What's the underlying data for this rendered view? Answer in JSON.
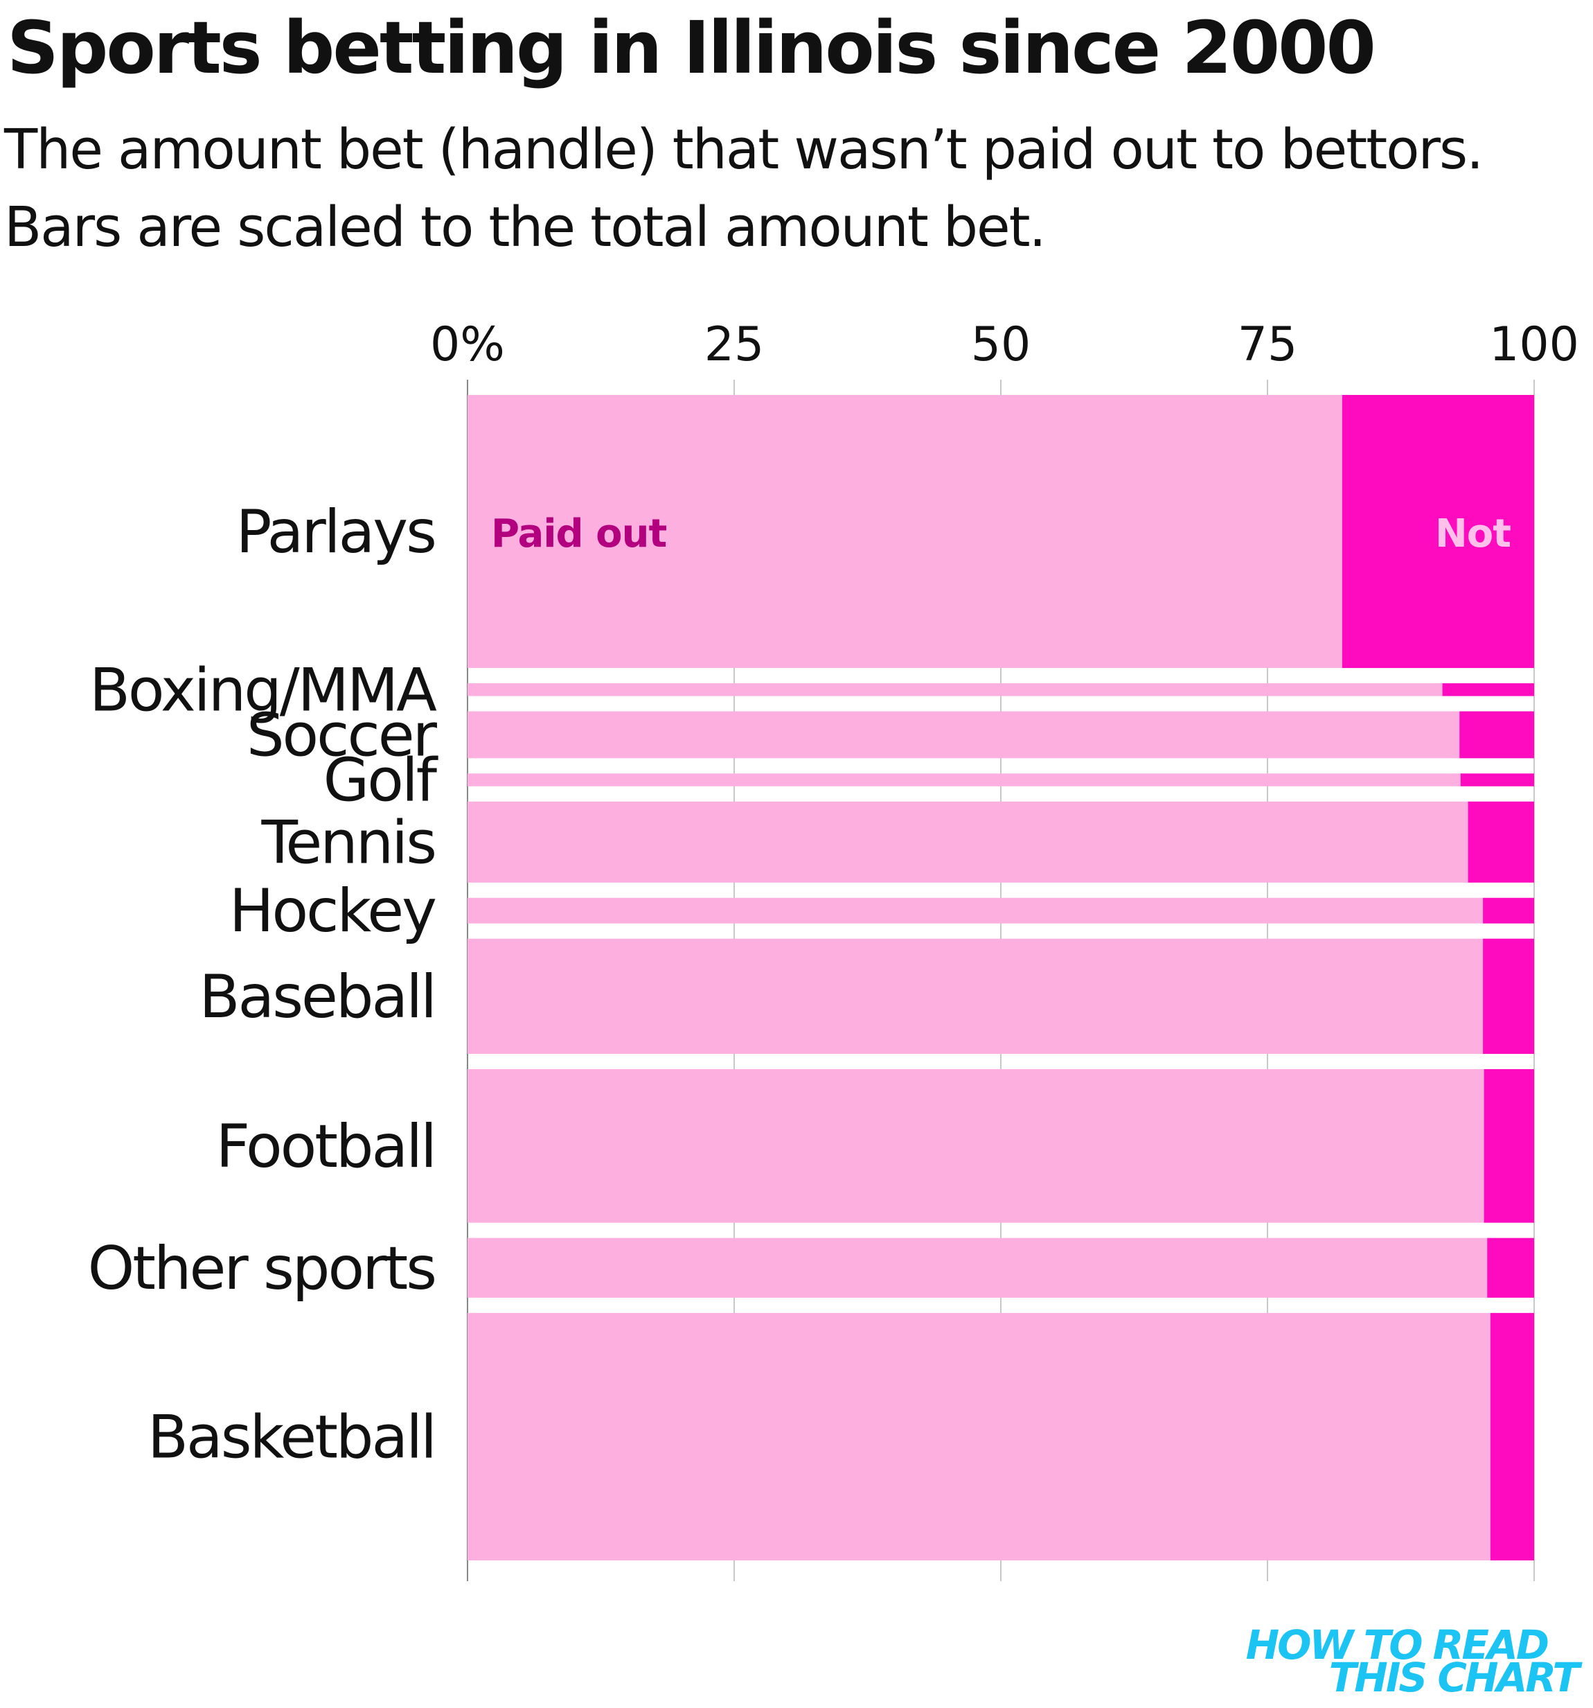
{
  "title": "Sports betting in Illinois since 2000",
  "subtitle_line1": "The amount bet (handle) that wasn’t paid out to bettors.",
  "subtitle_line2": "Bars are scaled to the total amount bet.",
  "logo_line1": "HOW TO READ",
  "logo_line2": "THIS CHART",
  "colors": {
    "paid_out": "#fdb0df",
    "not_paid": "#ff0bbf",
    "paid_label": "#b3007e",
    "not_label": "#ffc1e9",
    "grid": "#c8c8c8",
    "axis": "#888888",
    "logo": "#1cc4f4"
  },
  "chart_data": {
    "type": "bar",
    "orientation": "horizontal",
    "stacked": true,
    "xlim": [
      0,
      100
    ],
    "ticks": [
      {
        "value": 0,
        "label": "0%"
      },
      {
        "value": 25,
        "label": "25"
      },
      {
        "value": 50,
        "label": "50"
      },
      {
        "value": 75,
        "label": "75"
      },
      {
        "value": 100,
        "label": "100"
      }
    ],
    "bar_height_encodes": "total amount bet (relative)",
    "segment_labels": {
      "paid_out": "Paid out",
      "not_paid": "Not"
    },
    "categories": [
      "Parlays",
      "Boxing/MMA",
      "Soccer",
      "Golf",
      "Tennis",
      "Hockey",
      "Baseball",
      "Football",
      "Other sports",
      "Basketball"
    ],
    "series": [
      {
        "name": "Paid out",
        "values": [
          82.0,
          91.4,
          93.0,
          93.1,
          93.8,
          95.2,
          95.2,
          95.3,
          95.6,
          95.9
        ]
      },
      {
        "name": "Not",
        "values": [
          18.0,
          8.6,
          7.0,
          6.9,
          6.2,
          4.8,
          4.8,
          4.7,
          4.4,
          4.1
        ]
      }
    ],
    "relative_handle": [
      32,
      1.5,
      5.5,
      1.5,
      9.5,
      3,
      13.5,
      18,
      7,
      29
    ],
    "grid": true
  }
}
